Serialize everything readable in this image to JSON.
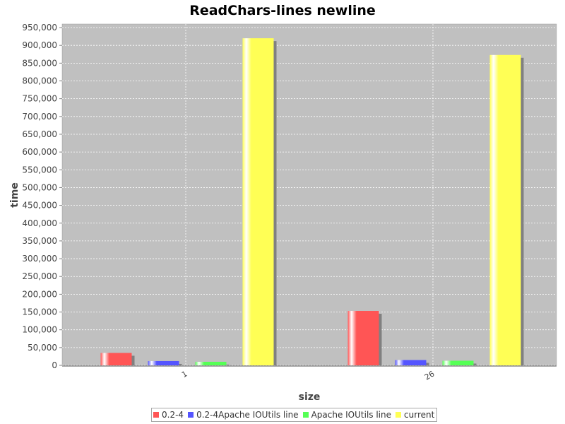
{
  "colors": {
    "plot_background": "#c0c0c0",
    "gridline": "#ffffff",
    "axis": "#808080",
    "series": [
      "#ff5555",
      "#5555ff",
      "#55ff55",
      "#ffff55"
    ]
  },
  "chart_data": {
    "type": "bar",
    "title": "ReadChars-lines newline",
    "xlabel": "size",
    "ylabel": "time",
    "categories": [
      "1",
      "26"
    ],
    "ylim": [
      0,
      960000
    ],
    "yticks": [
      "0",
      "50,000",
      "100,000",
      "150,000",
      "200,000",
      "250,000",
      "300,000",
      "350,000",
      "400,000",
      "450,000",
      "500,000",
      "550,000",
      "600,000",
      "650,000",
      "700,000",
      "750,000",
      "800,000",
      "850,000",
      "900,000",
      "950,000"
    ],
    "ytick_values": [
      0,
      50000,
      100000,
      150000,
      200000,
      250000,
      300000,
      350000,
      400000,
      450000,
      500000,
      550000,
      600000,
      650000,
      700000,
      750000,
      800000,
      850000,
      900000,
      950000
    ],
    "grid": true,
    "legend_position": "bottom",
    "series": [
      {
        "name": "0.2-4",
        "values": [
          35000,
          153000
        ]
      },
      {
        "name": "0.2-4Apache IOUtils line",
        "values": [
          12000,
          15000
        ]
      },
      {
        "name": "Apache IOUtils line",
        "values": [
          10000,
          13000
        ]
      },
      {
        "name": "current",
        "values": [
          920000,
          873000
        ]
      }
    ]
  }
}
